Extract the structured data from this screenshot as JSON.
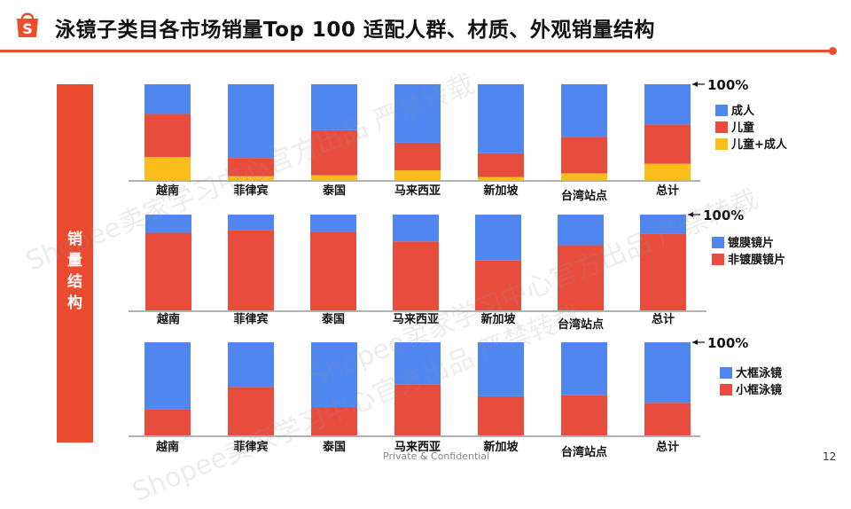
{
  "title": "泳镜子类目各市场销量Top 100 适配人群、材质、外观销量结构",
  "sidebar_label": "销量结构",
  "sidebar_chars": [
    "销",
    "量",
    "结",
    "构"
  ],
  "footer": "Private & Confidential",
  "page_number": "12",
  "colors": {
    "accent": "#ee4d2d",
    "sidebar": "#ea4a2d",
    "blue": "#4f86f0",
    "red": "#e84c3d",
    "yellow": "#fbbd1c"
  },
  "watermarks": [
    "Shopee卖家学习中心官方出品 严禁转载",
    "Shopee卖家学习中心官方出品 严禁转载",
    "Shopee卖家学习中心官方出品 严禁转载"
  ],
  "chart_data": [
    {
      "type": "bar",
      "stacked": true,
      "percent": true,
      "categories": [
        "越南",
        "菲律宾",
        "泰国",
        "马来西亚",
        "新加坡",
        "台湾站点",
        "总计"
      ],
      "series": [
        {
          "name": "儿童+成人",
          "color": "#fbbd1c",
          "values": [
            24,
            4,
            5,
            10,
            3,
            7,
            17
          ]
        },
        {
          "name": "儿童",
          "color": "#e84c3d",
          "values": [
            45,
            19,
            47,
            29,
            25,
            38,
            41
          ]
        },
        {
          "name": "成人",
          "color": "#4f86f0",
          "values": [
            31,
            77,
            48,
            61,
            72,
            55,
            42
          ]
        }
      ],
      "annotation": "100%",
      "ylim": [
        0,
        100
      ]
    },
    {
      "type": "bar",
      "stacked": true,
      "percent": true,
      "categories": [
        "越南",
        "菲律宾",
        "泰国",
        "马来西亚",
        "新加坡",
        "台湾站点",
        "总计"
      ],
      "series": [
        {
          "name": "非镀膜镜片",
          "color": "#e84c3d",
          "values": [
            81,
            84,
            82,
            72,
            52,
            68,
            80
          ]
        },
        {
          "name": "镀膜镜片",
          "color": "#4f86f0",
          "values": [
            19,
            16,
            18,
            28,
            48,
            32,
            20
          ]
        }
      ],
      "annotation": "100%",
      "ylim": [
        0,
        100
      ]
    },
    {
      "type": "bar",
      "stacked": true,
      "percent": true,
      "categories": [
        "越南",
        "菲律宾",
        "泰国",
        "马来西亚",
        "新加坡",
        "台湾站点",
        "总计"
      ],
      "series": [
        {
          "name": "小框泳镜",
          "color": "#e84c3d",
          "values": [
            28,
            52,
            30,
            55,
            42,
            43,
            35
          ]
        },
        {
          "name": "大框泳镜",
          "color": "#4f86f0",
          "values": [
            72,
            48,
            70,
            45,
            58,
            57,
            65
          ]
        }
      ],
      "annotation": "100%",
      "ylim": [
        0,
        100
      ]
    }
  ]
}
